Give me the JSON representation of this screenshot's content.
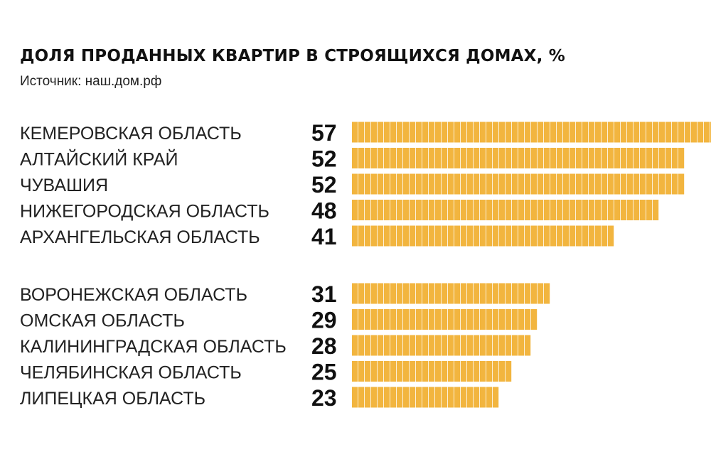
{
  "title": "ДОЛЯ ПРОДАННЫХ КВАРТИР В СТРОЯЩИХСЯ ДОМАХ, %",
  "source": "Источник: наш.дом.рф",
  "bar_color": "#f2b53f",
  "chart_data": {
    "type": "bar",
    "orientation": "horizontal",
    "title": "ДОЛЯ ПРОДАННЫХ КВАРТИР В СТРОЯЩИХСЯ ДОМАХ, %",
    "groups": [
      {
        "categories": [
          "КЕМЕРОВСКАЯ ОБЛАСТЬ",
          "АЛТАЙСКИЙ КРАЙ",
          "ЧУВАШИЯ",
          "НИЖЕГОРОДСКАЯ ОБЛАСТЬ",
          "АРХАНГЕЛЬСКАЯ ОБЛАСТЬ"
        ],
        "values": [
          57,
          52,
          52,
          48,
          41
        ]
      },
      {
        "categories": [
          "ВОРОНЕЖСКАЯ ОБЛАСТЬ",
          "ОМСКАЯ ОБЛАСТЬ",
          "КАЛИНИНГРАДСКАЯ ОБЛАСТЬ",
          "ЧЕЛЯБИНСКАЯ ОБЛАСТЬ",
          "ЛИПЕЦКАЯ ОБЛАСТЬ"
        ],
        "values": [
          31,
          29,
          28,
          25,
          23
        ]
      }
    ],
    "xlim": [
      0,
      57
    ],
    "grid": false,
    "legend": "none"
  }
}
